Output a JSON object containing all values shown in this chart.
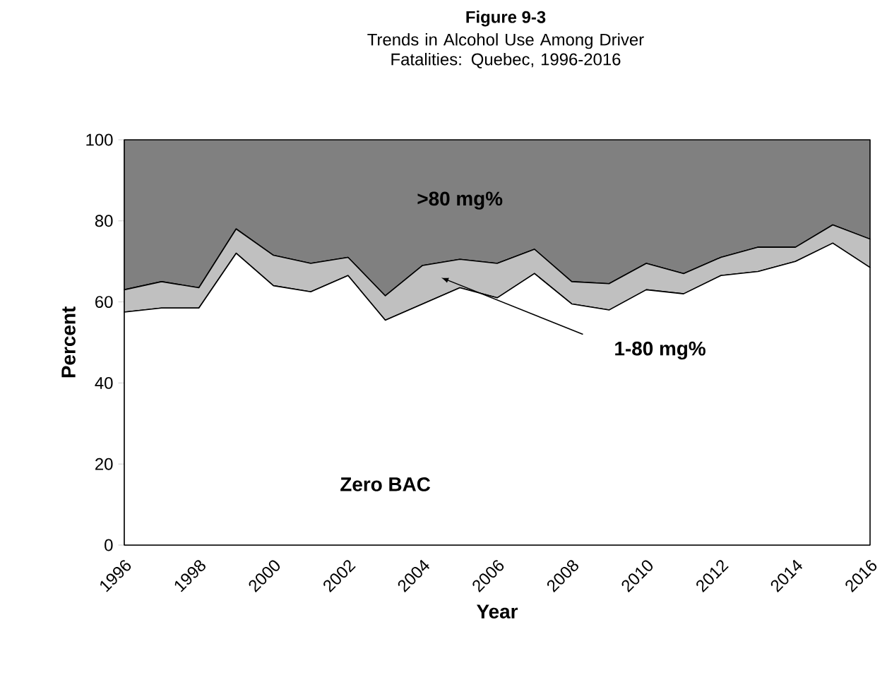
{
  "chart_data": {
    "type": "area",
    "stacked": true,
    "title": "Figure 9-3",
    "subtitle": "Trends in Alcohol Use Among Driver Fatalities: Quebec, 1996-2016",
    "xlabel": "Year",
    "ylabel": "Percent",
    "x": [
      1996,
      1997,
      1998,
      1999,
      2000,
      2001,
      2002,
      2003,
      2004,
      2005,
      2006,
      2007,
      2008,
      2009,
      2010,
      2011,
      2012,
      2013,
      2014,
      2015,
      2016
    ],
    "xlim": [
      1996,
      2016
    ],
    "xticks": [
      1996,
      1998,
      2000,
      2002,
      2004,
      2006,
      2008,
      2010,
      2012,
      2014,
      2016
    ],
    "ylim": [
      0,
      100
    ],
    "yticks": [
      0,
      20,
      40,
      60,
      80,
      100
    ],
    "series": [
      {
        "name": "Zero BAC",
        "color": "#ffffff",
        "values": [
          57.5,
          58.5,
          58.5,
          72,
          64,
          62.5,
          66.5,
          55.5,
          59.5,
          63.5,
          61,
          67,
          59.5,
          58,
          63,
          62,
          66.5,
          67.5,
          70,
          74.5,
          68.5
        ]
      },
      {
        "name": "1-80 mg%",
        "color": "#c0c0c0",
        "values": [
          5.5,
          6.5,
          5,
          6,
          7.5,
          7,
          4.5,
          6,
          9.5,
          7,
          8.5,
          6,
          5.5,
          6.5,
          6.5,
          5,
          4.5,
          6,
          3.5,
          4.5,
          7
        ]
      },
      {
        "name": ">80 mg%",
        "color": "#808080",
        "values": [
          37,
          35,
          36.5,
          22,
          28.5,
          30.5,
          29,
          38.5,
          31,
          29.5,
          30.5,
          27,
          35,
          35.5,
          30.5,
          33,
          29,
          26.5,
          26.5,
          21,
          24.5
        ]
      }
    ],
    "legend": false,
    "grid": false
  }
}
